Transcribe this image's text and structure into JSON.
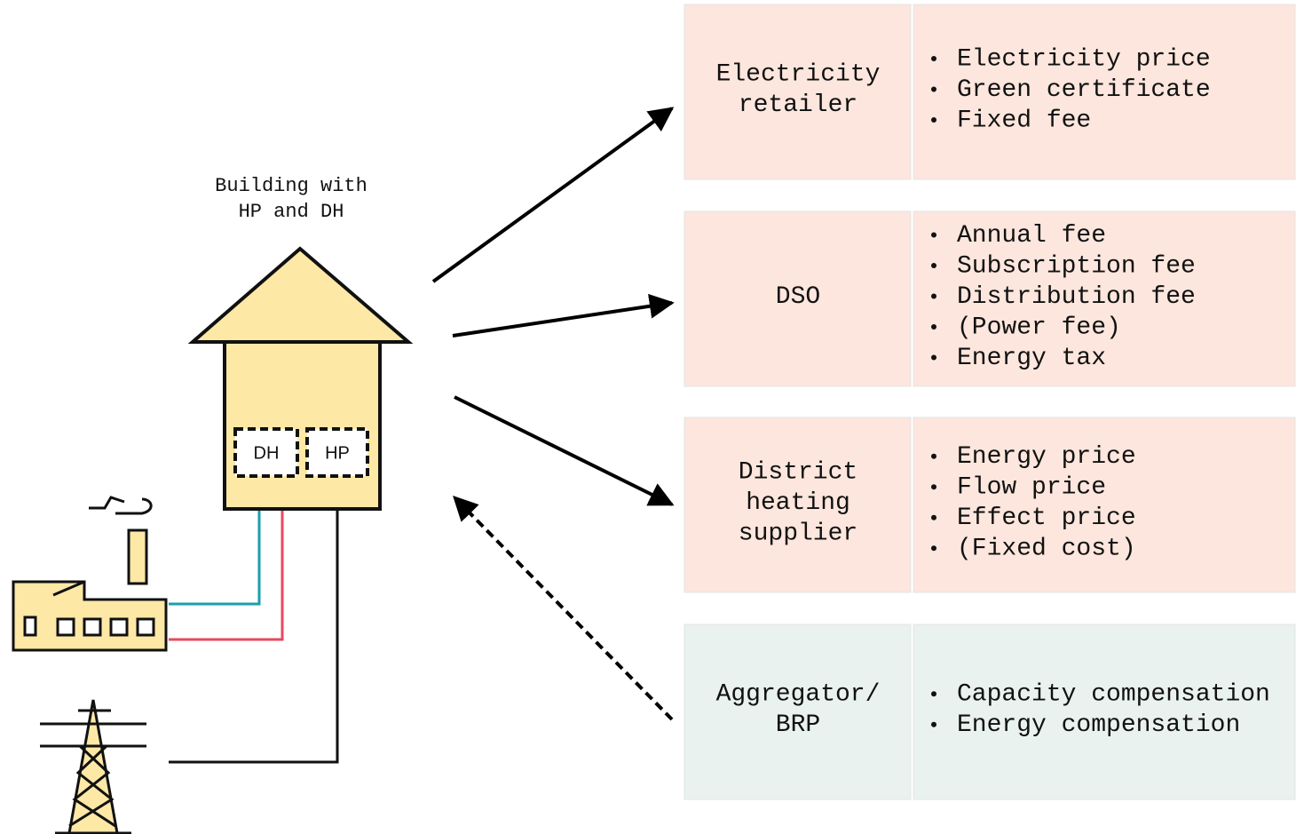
{
  "building": {
    "label": [
      "Building with",
      "HP and DH"
    ],
    "dh": "DH",
    "hp": "HP"
  },
  "actors": [
    {
      "name": [
        "Electricity",
        "retailer"
      ],
      "items": [
        "Electricity price",
        "Green certificate",
        "Fixed fee"
      ]
    },
    {
      "name": [
        "DSO"
      ],
      "items": [
        "Annual fee",
        "Subscription fee",
        "Distribution fee",
        "(Power fee)",
        "Energy tax"
      ]
    },
    {
      "name": [
        "District",
        "heating",
        "supplier"
      ],
      "items": [
        "Energy price",
        "Flow price",
        "Effect price",
        "(Fixed cost)"
      ]
    },
    {
      "name": [
        "Aggregator/",
        "BRP"
      ],
      "items": [
        "Capacity compensation",
        "Energy compensation"
      ]
    }
  ]
}
